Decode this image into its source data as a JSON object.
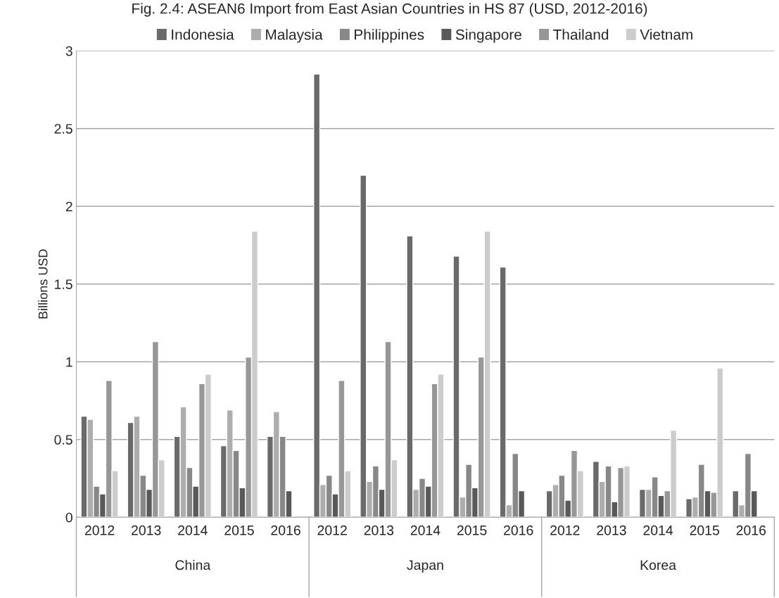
{
  "chart_data": {
    "type": "bar",
    "title": "Fig. 2.4: ASEAN6 Import from East Asian Countries in HS 87 (USD, 2012-2016)",
    "ylabel": "Billions USD",
    "categories": [
      "2012",
      "2013",
      "2014",
      "2015",
      "2016",
      "2012",
      "2013",
      "2014",
      "2015",
      "2016",
      "2012",
      "2013",
      "2014",
      "2015",
      "2016"
    ],
    "annotations": [
      "China",
      "Japan",
      "Korea"
    ],
    "series": [
      {
        "name": "Indonesia",
        "color": "#6a6a6a",
        "values": [
          0.65,
          0.61,
          0.52,
          0.46,
          0.52,
          2.85,
          2.2,
          1.81,
          1.68,
          1.61,
          0.17,
          0.36,
          0.18,
          0.12,
          0.17
        ]
      },
      {
        "name": "Malaysia",
        "color": "#adadad",
        "values": [
          0.63,
          0.65,
          0.71,
          0.69,
          0.68,
          0.21,
          0.23,
          0.18,
          0.13,
          0.08,
          0.21,
          0.23,
          0.18,
          0.13,
          0.08
        ]
      },
      {
        "name": "Philippines",
        "color": "#888888",
        "values": [
          0.2,
          0.27,
          0.32,
          0.43,
          0.52,
          0.27,
          0.33,
          0.25,
          0.34,
          0.41,
          0.27,
          0.33,
          0.26,
          0.34,
          0.41
        ]
      },
      {
        "name": "Singapore",
        "color": "#595959",
        "values": [
          0.15,
          0.18,
          0.2,
          0.19,
          0.17,
          0.15,
          0.18,
          0.2,
          0.19,
          0.17,
          0.11,
          0.1,
          0.14,
          0.17,
          0.17
        ]
      },
      {
        "name": "Thailand",
        "color": "#979797",
        "values": [
          0.88,
          1.13,
          0.86,
          1.03,
          null,
          0.88,
          1.13,
          0.86,
          1.03,
          null,
          0.43,
          0.32,
          0.17,
          0.16,
          null
        ]
      },
      {
        "name": "Vietnam",
        "color": "#cccccc",
        "values": [
          0.3,
          0.37,
          0.92,
          1.84,
          null,
          0.3,
          0.37,
          0.92,
          1.84,
          null,
          0.3,
          0.33,
          0.56,
          0.96,
          null
        ]
      }
    ],
    "ylim": [
      0,
      3
    ],
    "yticks": [
      0,
      0.5,
      1,
      1.5,
      2,
      2.5,
      3
    ],
    "grid": "y",
    "legend": "top"
  }
}
